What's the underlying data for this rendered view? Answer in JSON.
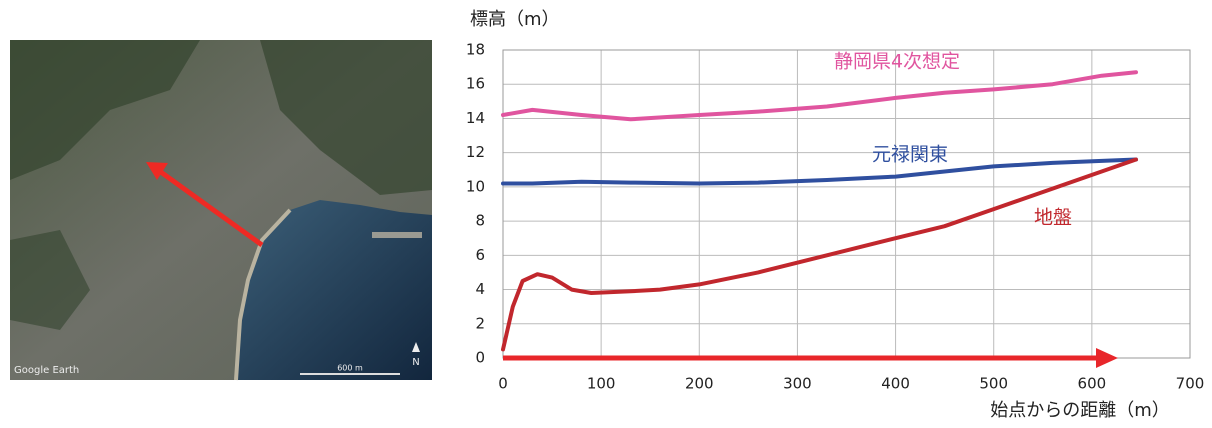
{
  "chart_data": {
    "type": "line",
    "y_axis_title": "標高（m）",
    "x_axis_title": "始点からの距離（m）",
    "xlim": [
      0,
      700
    ],
    "xticks": [
      0,
      100,
      200,
      300,
      400,
      500,
      600,
      700
    ],
    "ylim": [
      0,
      18
    ],
    "yticks": [
      0,
      2,
      4,
      6,
      8,
      10,
      12,
      14,
      16,
      18
    ],
    "grid": true,
    "series": [
      {
        "name": "静岡県4次想定",
        "color": "#e0559f",
        "x": [
          0,
          30,
          80,
          130,
          200,
          260,
          330,
          400,
          450,
          500,
          560,
          610,
          645
        ],
        "values": [
          14.2,
          14.5,
          14.2,
          13.95,
          14.2,
          14.4,
          14.7,
          15.2,
          15.5,
          15.7,
          16.0,
          16.5,
          16.7
        ]
      },
      {
        "name": "元禄関東",
        "color": "#2f4f9f",
        "x": [
          0,
          30,
          80,
          130,
          200,
          260,
          330,
          400,
          450,
          500,
          560,
          645
        ],
        "values": [
          10.2,
          10.2,
          10.3,
          10.25,
          10.2,
          10.25,
          10.4,
          10.6,
          10.9,
          11.2,
          11.4,
          11.6
        ]
      },
      {
        "name": "地盤",
        "color": "#c1272d",
        "x": [
          0,
          10,
          20,
          35,
          50,
          70,
          90,
          130,
          160,
          200,
          260,
          330,
          400,
          450,
          500,
          560,
          645
        ],
        "values": [
          0.5,
          3.0,
          4.5,
          4.9,
          4.7,
          4.0,
          3.8,
          3.9,
          4.0,
          4.3,
          5.0,
          6.0,
          7.0,
          7.7,
          8.7,
          9.9,
          11.6
        ]
      }
    ]
  },
  "map_image": {
    "attribution": "Google Earth",
    "scale": "600 m",
    "north": "N"
  }
}
